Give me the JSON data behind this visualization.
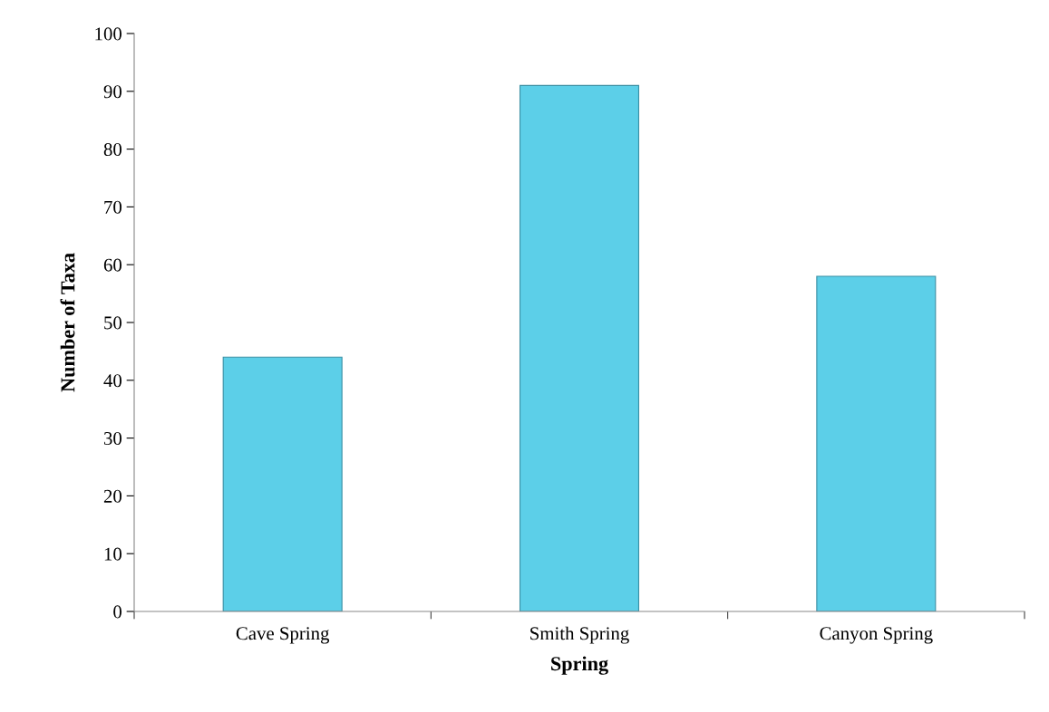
{
  "chart_data": {
    "type": "bar",
    "xlabel": "Spring",
    "ylabel": "Number of Taxa",
    "categories": [
      "Cave Spring",
      "Smith Spring",
      "Canyon Spring"
    ],
    "values": [
      44,
      91,
      58
    ],
    "color": "#5ccfe8",
    "ylim": [
      0,
      100
    ],
    "yticks": [
      0,
      10,
      20,
      30,
      40,
      50,
      60,
      70,
      80,
      90,
      100
    ],
    "grid": false
  }
}
